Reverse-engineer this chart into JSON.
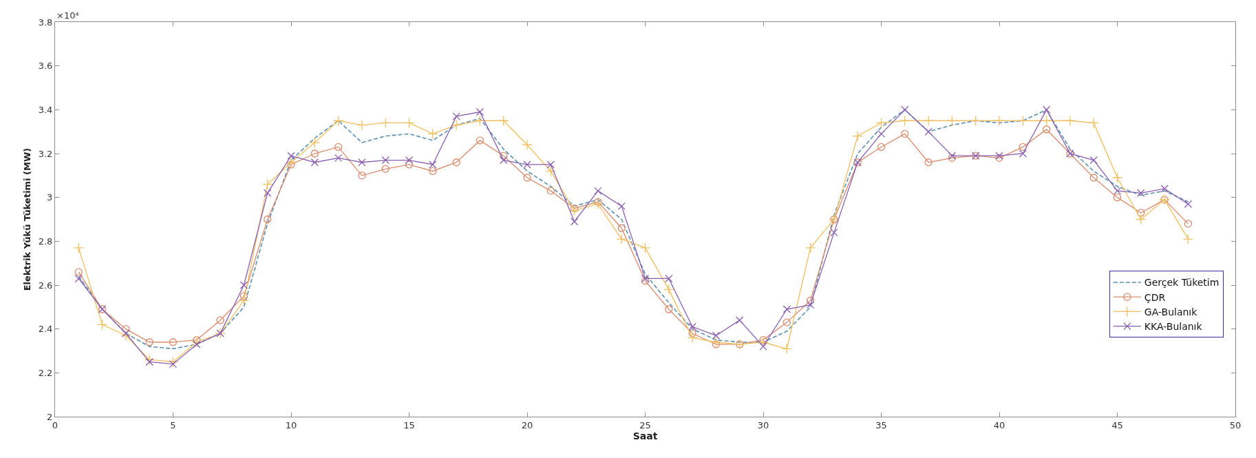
{
  "chart_data": {
    "type": "line",
    "xlabel": "Saat",
    "ylabel": "Elektrik Yükü Tüketimi (MW)",
    "annotations": [
      "×10⁴"
    ],
    "x": [
      1,
      2,
      3,
      4,
      5,
      6,
      7,
      8,
      9,
      10,
      11,
      12,
      13,
      14,
      15,
      16,
      17,
      18,
      19,
      20,
      21,
      22,
      23,
      24,
      25,
      26,
      27,
      28,
      29,
      30,
      31,
      32,
      33,
      34,
      35,
      36,
      37,
      38,
      39,
      40,
      41,
      42,
      43,
      44,
      45,
      46,
      47,
      48
    ],
    "xlim": [
      0,
      50
    ],
    "xticks": [
      0,
      5,
      10,
      15,
      20,
      25,
      30,
      35,
      40,
      45,
      50
    ],
    "ylim": [
      2,
      3.8
    ],
    "yticks": [
      2,
      2.2,
      2.4,
      2.6,
      2.8,
      3,
      3.2,
      3.4,
      3.6,
      3.8
    ],
    "grid": false,
    "legend": "bottom right",
    "series": [
      {
        "name": "Gerçek Tüketim",
        "color": "#5b8fb0",
        "line_style": "dashed",
        "marker": "none",
        "values": [
          2.64,
          2.49,
          2.38,
          2.32,
          2.31,
          2.33,
          2.38,
          2.5,
          2.88,
          3.17,
          3.27,
          3.35,
          3.25,
          3.28,
          3.29,
          3.26,
          3.33,
          3.36,
          3.22,
          3.12,
          3.05,
          2.96,
          2.99,
          2.9,
          2.65,
          2.52,
          2.4,
          2.35,
          2.34,
          2.34,
          2.39,
          2.5,
          2.92,
          3.2,
          3.32,
          3.4,
          3.3,
          3.33,
          3.35,
          3.34,
          3.35,
          3.4,
          3.22,
          3.12,
          3.05,
          3.01,
          3.03,
          2.98
        ]
      },
      {
        "name": "ÇDR",
        "color": "#d98c6c",
        "line_style": "solid",
        "marker": "circle",
        "values": [
          2.66,
          2.49,
          2.4,
          2.34,
          2.34,
          2.35,
          2.44,
          2.55,
          2.9,
          3.15,
          3.2,
          3.23,
          3.1,
          3.13,
          3.15,
          3.12,
          3.16,
          3.26,
          3.19,
          3.09,
          3.03,
          2.95,
          2.98,
          2.86,
          2.62,
          2.49,
          2.38,
          2.33,
          2.33,
          2.35,
          2.43,
          2.53,
          2.9,
          3.16,
          3.23,
          3.29,
          3.16,
          3.18,
          3.19,
          3.18,
          3.23,
          3.31,
          3.2,
          3.09,
          3.0,
          2.93,
          2.99,
          2.88
        ]
      },
      {
        "name": "GA-Bulanık",
        "color": "#f0c060",
        "line_style": "solid",
        "marker": "cross",
        "values": [
          2.77,
          2.42,
          2.37,
          2.26,
          2.25,
          2.34,
          2.38,
          2.53,
          3.06,
          3.16,
          3.25,
          3.35,
          3.33,
          3.34,
          3.34,
          3.29,
          3.33,
          3.35,
          3.35,
          3.24,
          3.12,
          2.94,
          2.97,
          2.81,
          2.77,
          2.58,
          2.36,
          2.34,
          2.33,
          2.34,
          2.31,
          2.77,
          2.9,
          3.28,
          3.34,
          3.35,
          3.35,
          3.35,
          3.35,
          3.35,
          3.35,
          3.35,
          3.35,
          3.34,
          3.09,
          2.9,
          2.99,
          2.81
        ]
      },
      {
        "name": "KKA-Bulanık",
        "color": "#8a5fb0",
        "line_style": "solid",
        "marker": "cross",
        "values": [
          2.63,
          2.49,
          2.38,
          2.25,
          2.24,
          2.33,
          2.38,
          2.6,
          3.02,
          3.19,
          3.16,
          3.18,
          3.16,
          3.17,
          3.17,
          3.15,
          3.37,
          3.39,
          3.17,
          3.15,
          3.15,
          2.89,
          3.03,
          2.96,
          2.63,
          2.63,
          2.41,
          2.37,
          2.44,
          2.32,
          2.49,
          2.51,
          2.84,
          3.16,
          3.29,
          3.4,
          3.3,
          3.19,
          3.19,
          3.19,
          3.2,
          3.4,
          3.2,
          3.17,
          3.03,
          3.02,
          3.04,
          2.97
        ]
      }
    ]
  }
}
